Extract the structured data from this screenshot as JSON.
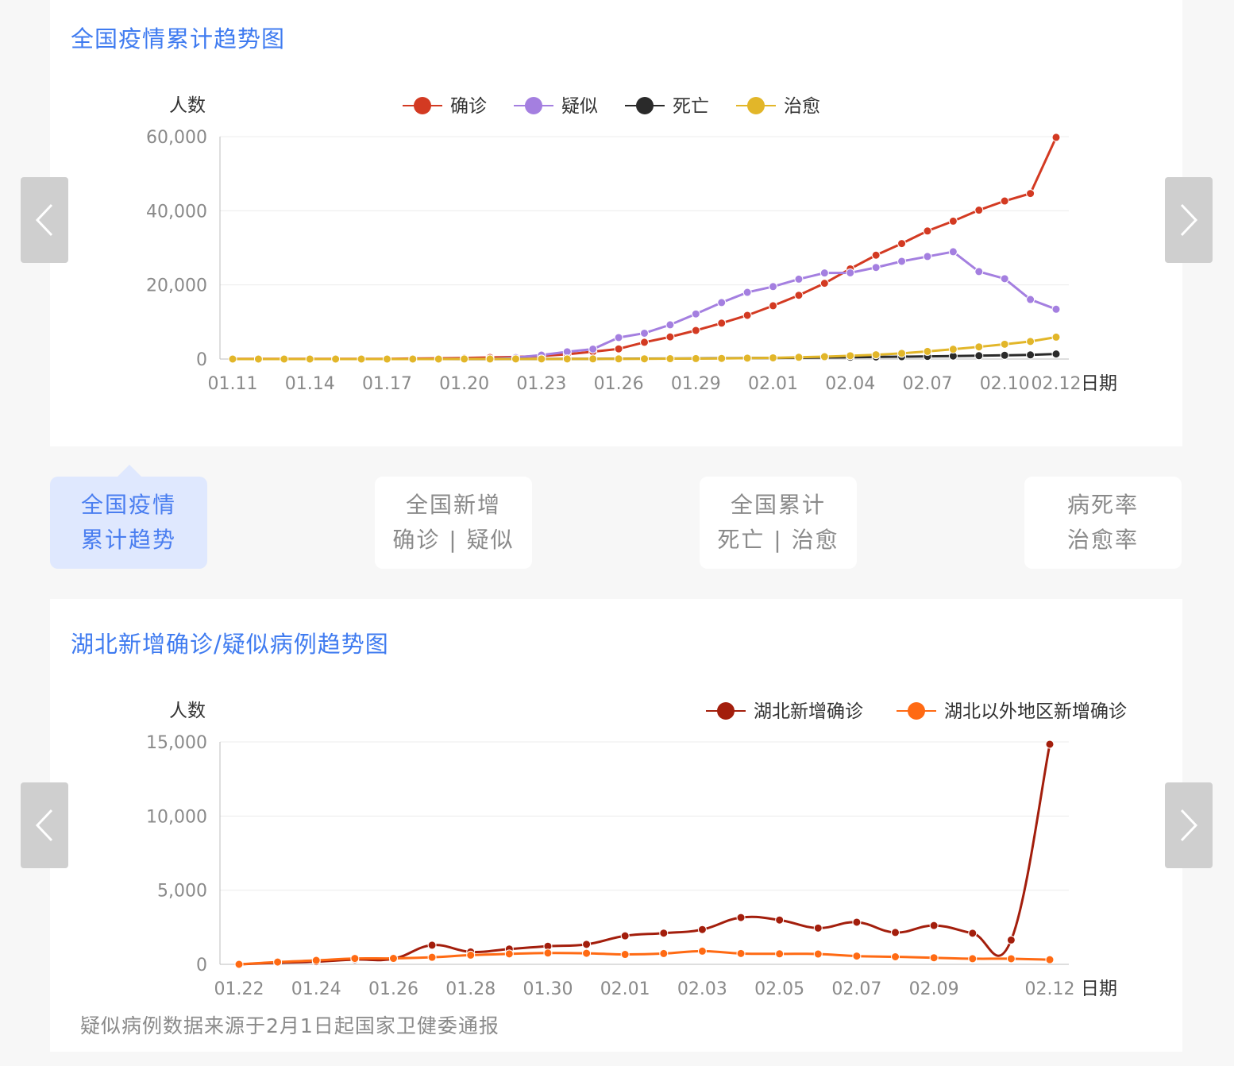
{
  "chart1": {
    "title": "全国疫情累计趋势图",
    "chart_data": {
      "type": "line",
      "x": [
        "01.11",
        "01.12",
        "01.13",
        "01.14",
        "01.15",
        "01.16",
        "01.17",
        "01.18",
        "01.19",
        "01.20",
        "01.21",
        "01.22",
        "01.23",
        "01.24",
        "01.25",
        "01.26",
        "01.27",
        "01.28",
        "01.29",
        "01.30",
        "01.31",
        "02.01",
        "02.02",
        "02.03",
        "02.04",
        "02.05",
        "02.06",
        "02.07",
        "02.08",
        "02.09",
        "02.10",
        "02.11",
        "02.12"
      ],
      "xticks": [
        "01.11",
        "01.14",
        "01.17",
        "01.20",
        "01.23",
        "01.26",
        "01.29",
        "02.01",
        "02.04",
        "02.07",
        "02.10",
        "02.12"
      ],
      "xlabel": "日期",
      "ylabel": "人数",
      "ylim": [
        0,
        60000
      ],
      "yticks": [
        0,
        20000,
        40000,
        60000
      ],
      "ytick_labels": [
        "0",
        "20,000",
        "40,000",
        "60,000"
      ],
      "legend_position": "top",
      "smooth": false,
      "series": [
        {
          "name": "确诊",
          "color": "#d33a22",
          "values": [
            41,
            41,
            41,
            41,
            41,
            45,
            62,
            121,
            198,
            291,
            440,
            571,
            830,
            1287,
            1975,
            2744,
            4515,
            5974,
            7711,
            9692,
            11791,
            14380,
            17205,
            20438,
            24324,
            28018,
            31161,
            34546,
            37198,
            40171,
            42638,
            44653,
            59804
          ]
        },
        {
          "name": "疑似",
          "color": "#a47fe0",
          "values": [
            0,
            0,
            0,
            0,
            0,
            0,
            0,
            0,
            0,
            54,
            37,
            393,
            1072,
            1965,
            2684,
            5794,
            6973,
            9239,
            12167,
            15238,
            17988,
            19544,
            21558,
            23214,
            23260,
            24702,
            26359,
            27657,
            28942,
            23589,
            21675,
            16067,
            13435
          ]
        },
        {
          "name": "死亡",
          "color": "#2a2a2a",
          "values": [
            1,
            1,
            1,
            1,
            2,
            2,
            2,
            3,
            3,
            6,
            9,
            17,
            25,
            41,
            56,
            80,
            106,
            132,
            170,
            213,
            259,
            304,
            361,
            425,
            490,
            563,
            636,
            722,
            811,
            908,
            1016,
            1113,
            1367
          ]
        },
        {
          "name": "治愈",
          "color": "#e2b629",
          "values": [
            0,
            0,
            0,
            0,
            0,
            0,
            0,
            0,
            0,
            25,
            25,
            28,
            34,
            38,
            49,
            51,
            60,
            103,
            124,
            171,
            243,
            328,
            475,
            632,
            892,
            1153,
            1540,
            2050,
            2649,
            3281,
            3996,
            4740,
            5911
          ]
        }
      ]
    }
  },
  "tabs": [
    {
      "line1": "全国疫情",
      "line2": "累计趋势"
    },
    {
      "line1": "全国新增",
      "line2": "确诊 | 疑似"
    },
    {
      "line1": "全国累计",
      "line2": "死亡 | 治愈"
    },
    {
      "line1": "病死率",
      "line2": "治愈率"
    }
  ],
  "chart2": {
    "title": "湖北新增确诊/疑似病例趋势图",
    "footnote": "疑似病例数据来源于2月1日起国家卫健委通报",
    "chart_data": {
      "type": "line",
      "x": [
        "01.22",
        "01.23",
        "01.24",
        "01.25",
        "01.26",
        "01.27",
        "01.28",
        "01.29",
        "01.30",
        "01.31",
        "02.01",
        "02.02",
        "02.03",
        "02.04",
        "02.05",
        "02.06",
        "02.07",
        "02.08",
        "02.09",
        "02.10",
        "02.11",
        "02.12"
      ],
      "xticks": [
        "01.22",
        "01.24",
        "01.26",
        "01.28",
        "01.30",
        "02.01",
        "02.03",
        "02.05",
        "02.07",
        "02.09",
        "02.12"
      ],
      "xlabel": "日期",
      "ylabel": "人数",
      "ylim": [
        0,
        15000
      ],
      "yticks": [
        0,
        5000,
        10000,
        15000
      ],
      "ytick_labels": [
        "0",
        "5,000",
        "10,000",
        "15,000"
      ],
      "legend_position": "top-right",
      "smooth": true,
      "series": [
        {
          "name": "湖北新增确诊",
          "color": "#a31e0c",
          "values": [
            0,
            105,
            180,
            323,
            371,
            1291,
            840,
            1032,
            1220,
            1347,
            1921,
            2103,
            2345,
            3156,
            2987,
            2447,
            2841,
            2147,
            2618,
            2097,
            1638,
            14840
          ]
        },
        {
          "name": "湖北以外地区新增确诊",
          "color": "#ff6a13",
          "values": [
            0,
            154,
            265,
            396,
            400,
            474,
            620,
            705,
            762,
            744,
            669,
            728,
            890,
            732,
            707,
            696,
            558,
            509,
            444,
            381,
            377,
            312
          ]
        }
      ]
    }
  }
}
